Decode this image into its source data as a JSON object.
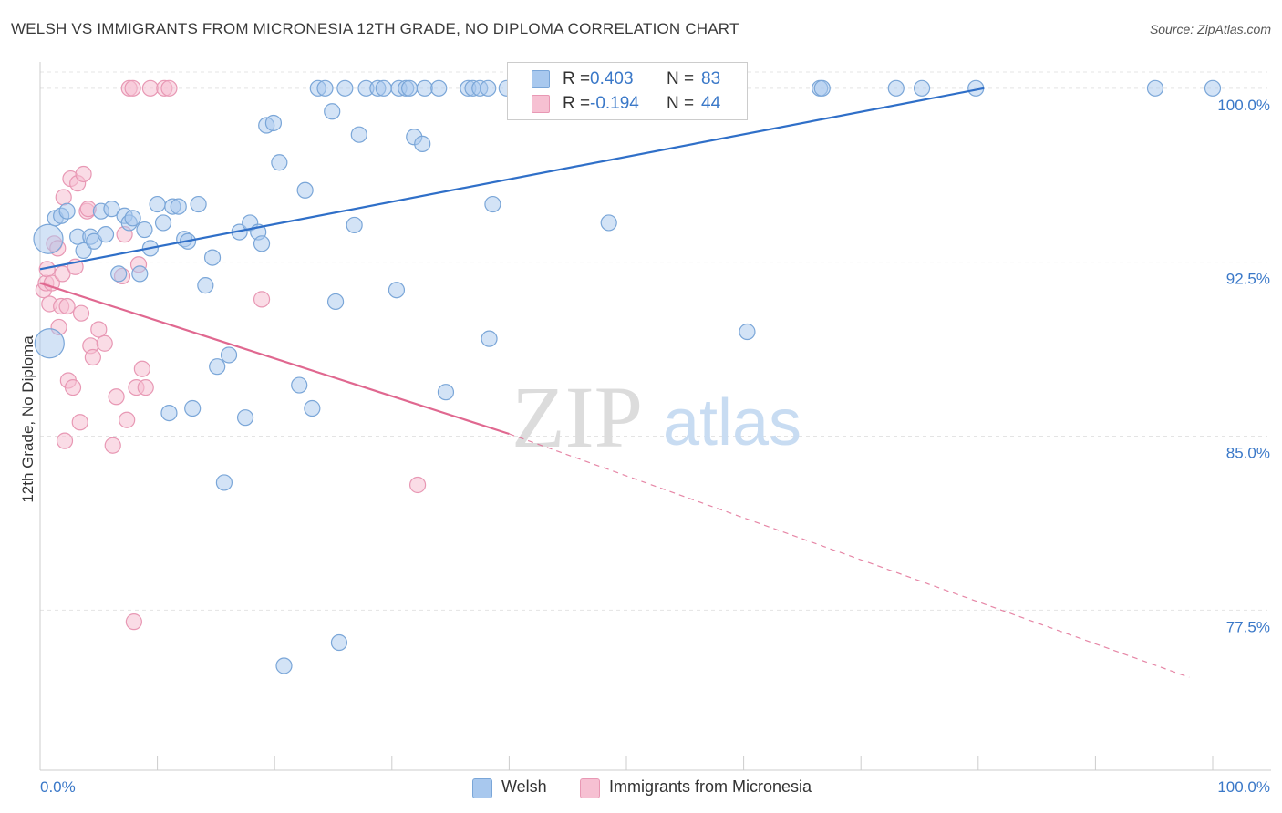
{
  "title": "WELSH VS IMMIGRANTS FROM MICRONESIA 12TH GRADE, NO DIPLOMA CORRELATION CHART",
  "source": "Source: ZipAtlas.com",
  "watermark": {
    "zip": "ZIP",
    "atlas": "atlas"
  },
  "legend": {
    "welsh": {
      "r_label": "R =",
      "r_value": "0.403",
      "n_label": "N =",
      "n_value": "83"
    },
    "micronesia": {
      "r_label": "R =",
      "r_value": "-0.194",
      "n_label": "N =",
      "n_value": "44"
    }
  },
  "bottom_legend": {
    "welsh": "Welsh",
    "micronesia": "Immigrants from Micronesia"
  },
  "colors": {
    "welsh_fill": "#a8c8ee",
    "welsh_stroke": "#7aa6d8",
    "welsh_line": "#2f6fc8",
    "micronesia_fill": "#f6c0d2",
    "micronesia_stroke": "#e898b4",
    "micronesia_line": "#e06890",
    "axis_text": "#3a78c8",
    "grid": "#e4e4e4"
  },
  "chart_data": {
    "type": "scatter",
    "title": "WELSH VS IMMIGRANTS FROM MICRONESIA 12TH GRADE, NO DIPLOMA CORRELATION CHART",
    "xlabel": "",
    "ylabel": "12th Grade, No Diploma",
    "xlim": [
      0,
      100
    ],
    "ylim": [
      70.6,
      100.7
    ],
    "x_tick_labels": [
      "0.0%",
      "100.0%"
    ],
    "y_ticks": [
      100.0,
      92.5,
      85.0,
      77.5
    ],
    "y_tick_labels": [
      "100.0%",
      "92.5%",
      "85.0%",
      "77.5%"
    ],
    "grid": true,
    "legend_position": "top-center",
    "series": [
      {
        "name": "Welsh",
        "trend": {
          "x": [
            0,
            80.5
          ],
          "y": [
            92.2,
            100.0
          ],
          "dashed_extension": false
        },
        "points": [
          [
            0.7,
            93.5
          ],
          [
            0.8,
            89.0
          ],
          [
            1.3,
            94.4
          ],
          [
            1.8,
            94.5
          ],
          [
            2.3,
            94.7
          ],
          [
            3.2,
            93.6
          ],
          [
            3.7,
            93.0
          ],
          [
            4.3,
            93.6
          ],
          [
            4.6,
            93.4
          ],
          [
            5.2,
            94.7
          ],
          [
            5.6,
            93.7
          ],
          [
            6.1,
            94.8
          ],
          [
            6.7,
            92.0
          ],
          [
            7.2,
            94.5
          ],
          [
            7.6,
            94.2
          ],
          [
            7.9,
            94.4
          ],
          [
            8.5,
            92.0
          ],
          [
            8.9,
            93.9
          ],
          [
            9.4,
            93.1
          ],
          [
            10.0,
            95.0
          ],
          [
            10.5,
            94.2
          ],
          [
            11.0,
            86.0
          ],
          [
            11.3,
            94.9
          ],
          [
            11.8,
            94.9
          ],
          [
            12.3,
            93.5
          ],
          [
            12.6,
            93.4
          ],
          [
            13.0,
            86.2
          ],
          [
            13.5,
            95.0
          ],
          [
            14.1,
            91.5
          ],
          [
            14.7,
            92.7
          ],
          [
            15.1,
            88.0
          ],
          [
            15.7,
            83.0
          ],
          [
            16.1,
            88.5
          ],
          [
            17.0,
            93.8
          ],
          [
            17.5,
            85.8
          ],
          [
            17.9,
            94.2
          ],
          [
            18.6,
            93.8
          ],
          [
            18.9,
            93.3
          ],
          [
            19.3,
            98.4
          ],
          [
            19.9,
            98.5
          ],
          [
            20.4,
            96.8
          ],
          [
            20.8,
            75.1
          ],
          [
            22.1,
            87.2
          ],
          [
            23.2,
            86.2
          ],
          [
            22.6,
            95.6
          ],
          [
            23.7,
            100.0
          ],
          [
            24.3,
            100.0
          ],
          [
            24.9,
            99.0
          ],
          [
            25.2,
            90.8
          ],
          [
            25.5,
            76.1
          ],
          [
            26.0,
            100.0
          ],
          [
            26.8,
            94.1
          ],
          [
            27.2,
            98.0
          ],
          [
            27.8,
            100.0
          ],
          [
            28.8,
            100.0
          ],
          [
            29.3,
            100.0
          ],
          [
            30.4,
            91.3
          ],
          [
            30.6,
            100.0
          ],
          [
            31.2,
            100.0
          ],
          [
            31.5,
            100.0
          ],
          [
            31.9,
            97.9
          ],
          [
            32.6,
            97.6
          ],
          [
            32.8,
            100.0
          ],
          [
            34.0,
            100.0
          ],
          [
            34.6,
            86.9
          ],
          [
            36.5,
            100.0
          ],
          [
            36.9,
            100.0
          ],
          [
            37.5,
            100.0
          ],
          [
            38.2,
            100.0
          ],
          [
            38.3,
            89.2
          ],
          [
            38.6,
            95.0
          ],
          [
            39.8,
            100.0
          ],
          [
            41.1,
            100.0
          ],
          [
            48.5,
            94.2
          ],
          [
            52.8,
            100.0
          ],
          [
            60.3,
            89.5
          ],
          [
            66.5,
            100.0
          ],
          [
            66.7,
            100.0
          ],
          [
            73.0,
            100.0
          ],
          [
            75.2,
            100.0
          ],
          [
            79.8,
            100.0
          ],
          [
            95.1,
            100.0
          ],
          [
            100.0,
            100.0
          ]
        ]
      },
      {
        "name": "Immigrants from Micronesia",
        "trend": {
          "x": [
            0,
            40.0
          ],
          "y": [
            91.6,
            85.1
          ],
          "dashed_to": [
            98.0,
            74.6
          ]
        },
        "points": [
          [
            0.3,
            91.3
          ],
          [
            0.5,
            91.6
          ],
          [
            0.6,
            92.2
          ],
          [
            0.8,
            90.7
          ],
          [
            1.0,
            91.6
          ],
          [
            1.2,
            93.3
          ],
          [
            1.5,
            93.1
          ],
          [
            1.6,
            89.7
          ],
          [
            1.8,
            90.6
          ],
          [
            1.9,
            92.0
          ],
          [
            2.0,
            95.3
          ],
          [
            2.1,
            84.8
          ],
          [
            2.3,
            90.6
          ],
          [
            2.4,
            87.4
          ],
          [
            2.6,
            96.1
          ],
          [
            2.8,
            87.1
          ],
          [
            3.0,
            92.3
          ],
          [
            3.2,
            95.9
          ],
          [
            3.4,
            85.6
          ],
          [
            3.5,
            90.3
          ],
          [
            3.7,
            96.3
          ],
          [
            4.0,
            94.7
          ],
          [
            4.1,
            94.8
          ],
          [
            4.3,
            88.9
          ],
          [
            4.5,
            88.4
          ],
          [
            5.0,
            89.6
          ],
          [
            5.5,
            89.0
          ],
          [
            6.2,
            84.6
          ],
          [
            6.5,
            86.7
          ],
          [
            7.0,
            91.9
          ],
          [
            7.2,
            93.7
          ],
          [
            7.4,
            85.7
          ],
          [
            7.6,
            100.0
          ],
          [
            7.9,
            100.0
          ],
          [
            8.0,
            77.0
          ],
          [
            8.2,
            87.1
          ],
          [
            8.4,
            92.4
          ],
          [
            8.7,
            87.9
          ],
          [
            9.0,
            87.1
          ],
          [
            9.4,
            100.0
          ],
          [
            10.6,
            100.0
          ],
          [
            11.0,
            100.0
          ],
          [
            18.9,
            90.9
          ],
          [
            32.2,
            82.9
          ]
        ]
      }
    ]
  }
}
